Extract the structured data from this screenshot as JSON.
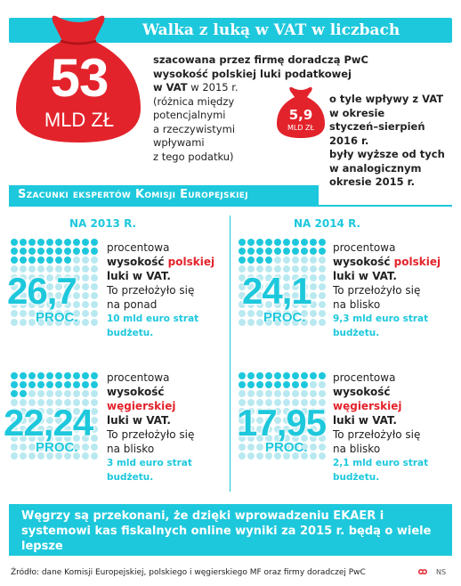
{
  "header": {
    "title": "Walka z luką w VAT w liczbach"
  },
  "big_bag": {
    "number": "53",
    "unit": "MLD ZŁ"
  },
  "intro": {
    "line1": "szacowana przez firmę doradczą PwC",
    "line2": "wysokość polskiej luki podatkowej",
    "line3_bold": "w VAT",
    "line3_rest": " w 2015 r.",
    "line4": "(różnica między",
    "line5": "potencjalnymi",
    "line6": "a rzeczywistymi",
    "line7": "wpływami",
    "line8": "z tego podatku)"
  },
  "small_bag": {
    "number": "5,9",
    "unit": "MLD ZŁ",
    "text1": "o tyle wpływy z VAT",
    "text2": "w okresie",
    "text3": "styczeń–sierpień 2016 r.",
    "text4": "były wyższe od tych",
    "text5": "w analogicznym",
    "text6": "okresie 2015 r."
  },
  "section": {
    "title": "Szacunki ekspertów Komisji Europejskiej",
    "year_left": "NA 2013 R.",
    "year_right": "NA 2014 R."
  },
  "blocks": [
    {
      "value": "26,7",
      "unit": "PROC.",
      "percent": 26.7,
      "d1": "procentowa",
      "d2a": "wysokość ",
      "d2b": "polskiej",
      "d3": "luki w VAT.",
      "d4": "To przełożyło się",
      "d5": "na ponad",
      "d6": "10 mld euro strat",
      "d7": "budżetu."
    },
    {
      "value": "24,1",
      "unit": "PROC.",
      "percent": 24.1,
      "d1": "procentowa",
      "d2a": "wysokość ",
      "d2b": "polskiej",
      "d3": "luki w VAT.",
      "d4": "To przełożyło się",
      "d5": "na blisko",
      "d6": "9,3 mld euro strat",
      "d7": "budżetu."
    },
    {
      "value": "22,24",
      "unit": "PROC.",
      "percent": 22.24,
      "d1": "procentowa",
      "d2a": "wysokość",
      "d2b": "węgierskiej",
      "d3": "luki w VAT.",
      "d4": "To przełożyło się",
      "d5": "na blisko",
      "d6": "3 mld euro strat",
      "d7": "budżetu."
    },
    {
      "value": "17,95",
      "unit": "PROC.",
      "percent": 17.95,
      "d1": "procentowa",
      "d2a": "wysokość",
      "d2b": "węgierskiej",
      "d3": "luki w VAT.",
      "d4": "To przełożyło się",
      "d5": "na blisko",
      "d6": "2,1 mld euro strat",
      "d7": "budżetu."
    }
  ],
  "footer": {
    "text": "Węgrzy są przekonani, że dzięki wprowadzeniu EKAER i systemowi kas fiskalnych online wyniki za 2015 r. będą o wiele lepsze",
    "source": "Źródło: dane Komisji Europejskiej, polskiego i węgierskiego MF oraz firmy doradczej PwC",
    "credit": "NS"
  },
  "colors": {
    "accent": "#1ec8dc",
    "red": "#e3232b"
  }
}
